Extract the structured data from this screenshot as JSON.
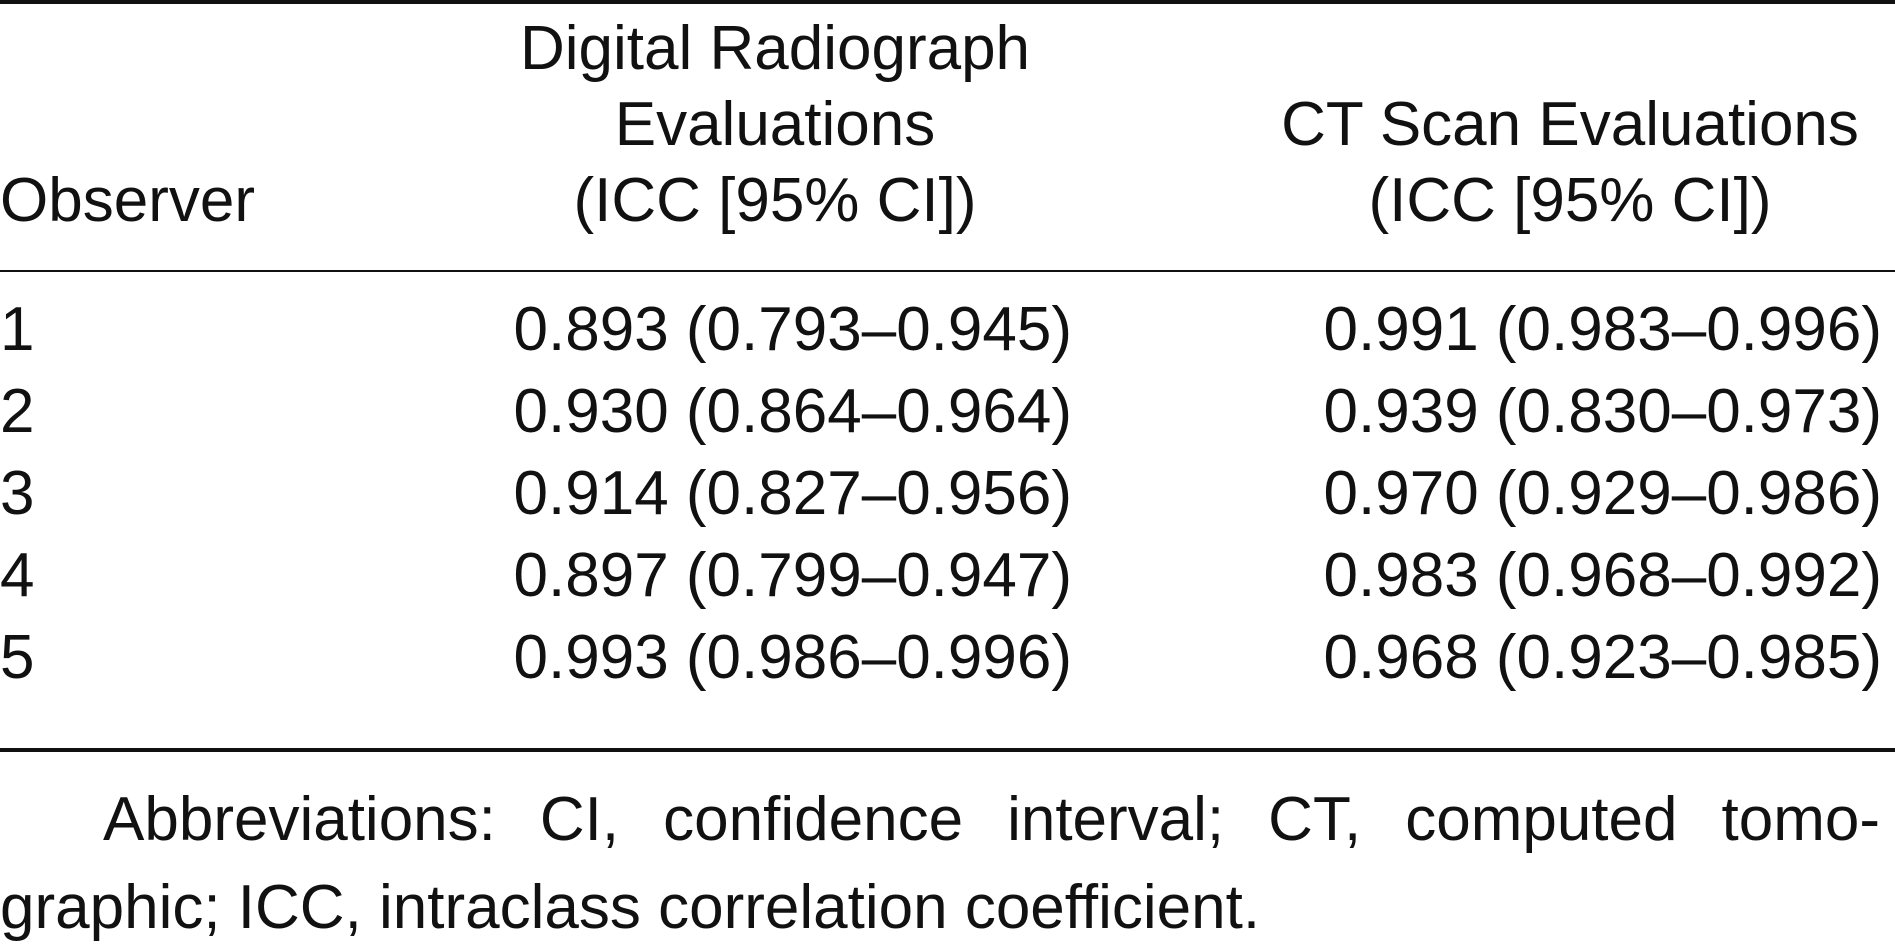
{
  "table": {
    "headers": {
      "observer": "Observer",
      "digital_line1": "Digital Radiograph",
      "digital_line2": "Evaluations",
      "digital_line3": "(ICC [95% CI])",
      "ct_line1": "CT Scan Evaluations",
      "ct_line2": "(ICC [95% CI])"
    },
    "rows": [
      {
        "observer": "1",
        "digital": "0.893 (0.793–0.945)",
        "ct": "0.991 (0.983–0.996)"
      },
      {
        "observer": "2",
        "digital": "0.930 (0.864–0.964)",
        "ct": "0.939 (0.830–0.973)"
      },
      {
        "observer": "3",
        "digital": "0.914 (0.827–0.956)",
        "ct": "0.970 (0.929–0.986)"
      },
      {
        "observer": "4",
        "digital": "0.897 (0.799–0.947)",
        "ct": "0.983 (0.968–0.992)"
      },
      {
        "observer": "5",
        "digital": "0.993 (0.986–0.996)",
        "ct": "0.968 (0.923–0.985)"
      }
    ]
  },
  "footnote": "Abbreviations: CI, confidence interval; CT, computed tomo-graphic; ICC, intraclass correlation coefficient."
}
